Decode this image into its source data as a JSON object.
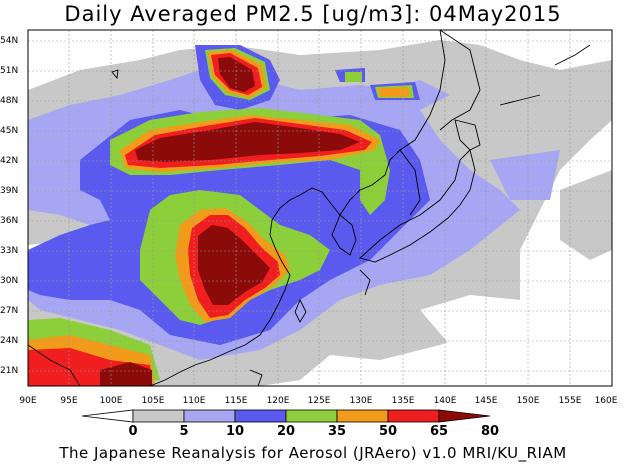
{
  "title": "Daily Averaged PM2.5 [ug/m3]: 04May2015",
  "footer": "The Japanese Reanalysis for Aerosol (JRAero) v1.0 MRI/KU_RIAM",
  "lat_labels": [
    "54N",
    "51N",
    "48N",
    "45N",
    "42N",
    "39N",
    "36N",
    "33N",
    "30N",
    "27N",
    "24N",
    "21N"
  ],
  "lon_labels": [
    "90E",
    "95E",
    "100E",
    "105E",
    "110E",
    "115E",
    "120E",
    "125E",
    "130E",
    "135E",
    "140E",
    "145E",
    "150E",
    "155E",
    "160E"
  ],
  "colorbar": {
    "levels": [
      "0",
      "5",
      "10",
      "20",
      "35",
      "50",
      "65",
      "80"
    ],
    "colors": [
      "#ffffff",
      "#c8c8c8",
      "#a6a6f2",
      "#5a5aee",
      "#8ccf3a",
      "#f29b1a",
      "#f01e1e",
      "#8b0a0a"
    ]
  },
  "map_colors": {
    "land_outline": "#000000",
    "grid": "#9a9a9a"
  }
}
